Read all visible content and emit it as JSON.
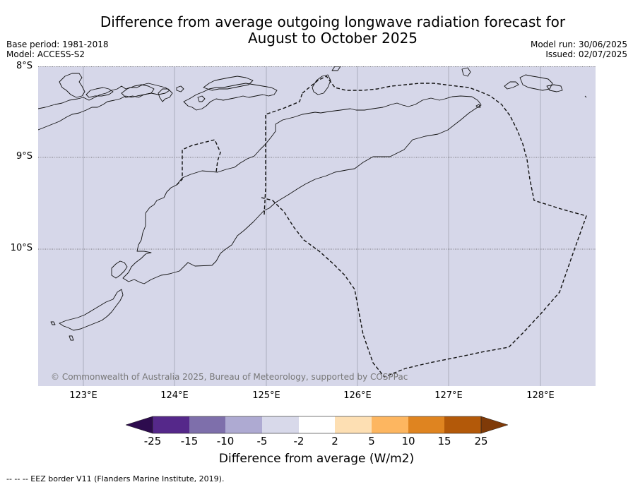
{
  "title": {
    "line1": "Difference from average outgoing longwave radiation forecast for",
    "line2": "August to October 2025"
  },
  "meta": {
    "base_period": "Base period: 1981-2018",
    "model": "Model: ACCESS-S2",
    "model_run": "Model run: 30/06/2025",
    "issued": "Issued: 02/07/2025"
  },
  "map": {
    "background_color": "#d6d7e9",
    "latitude_labels": [
      "8°S",
      "9°S",
      "10°S"
    ],
    "longitude_labels": [
      "123°E",
      "124°E",
      "125°E",
      "126°E",
      "127°E",
      "128°E"
    ],
    "copyright": "© Commonwealth of Australia 2025, Bureau of Meteorology, supported by COSPPac",
    "features": [
      "coastline",
      "eez-border-dashed",
      "graticule"
    ]
  },
  "colorbar": {
    "title": "Difference from average (W/m2)",
    "tick_labels": [
      "-25",
      "-15",
      "-10",
      "-5",
      "-2",
      "2",
      "5",
      "10",
      "15",
      "25"
    ],
    "colors": [
      "#2d0b4e",
      "#55288a",
      "#7e6fab",
      "#aeaad2",
      "#d8d9ea",
      "#ffffff",
      "#fddfb3",
      "#fdb660",
      "#df8420",
      "#b35909",
      "#7f3a08"
    ]
  },
  "footer": "--  --  -- EEZ border V11 (Flanders Marine Institute, 2019)."
}
